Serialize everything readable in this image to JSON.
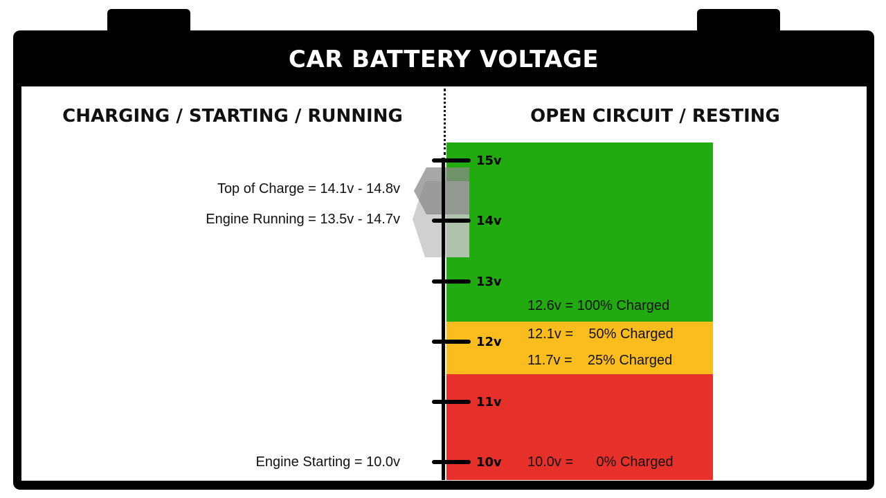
{
  "title": "CAR BATTERY VOLTAGE",
  "left_heading": "CHARGING / STARTING / RUNNING",
  "right_heading": "OPEN CIRCUIT / RESTING",
  "colors": {
    "full": "#22aa11",
    "partial": "#fbbd1d",
    "low": "#e7302a",
    "bracket_light": "#c8c8c8",
    "bracket_dark": "#8a8a8a"
  },
  "scale": {
    "min": 10,
    "max": 15,
    "ticks": [
      {
        "value": 15,
        "label": "15v"
      },
      {
        "value": 14,
        "label": "14v"
      },
      {
        "value": 13,
        "label": "13v"
      },
      {
        "value": 12,
        "label": "12v"
      },
      {
        "value": 11,
        "label": "11v"
      },
      {
        "value": 10,
        "label": "10v"
      }
    ]
  },
  "left_labels": [
    {
      "text": "Top of Charge = 14.1v - 14.8v",
      "range": [
        14.1,
        14.8
      ]
    },
    {
      "text": "Engine Running = 13.5v - 14.7v",
      "range": [
        13.5,
        14.7
      ]
    },
    {
      "text": "Engine Starting = 10.0v",
      "range": [
        10.0,
        10.0
      ]
    }
  ],
  "charge_levels": [
    {
      "text": "12.6v = 100% Charged"
    },
    {
      "text": "12.1v =    50% Charged"
    },
    {
      "text": "11.7v =    25% Charged"
    },
    {
      "text": "10.0v =      0% Charged"
    }
  ]
}
